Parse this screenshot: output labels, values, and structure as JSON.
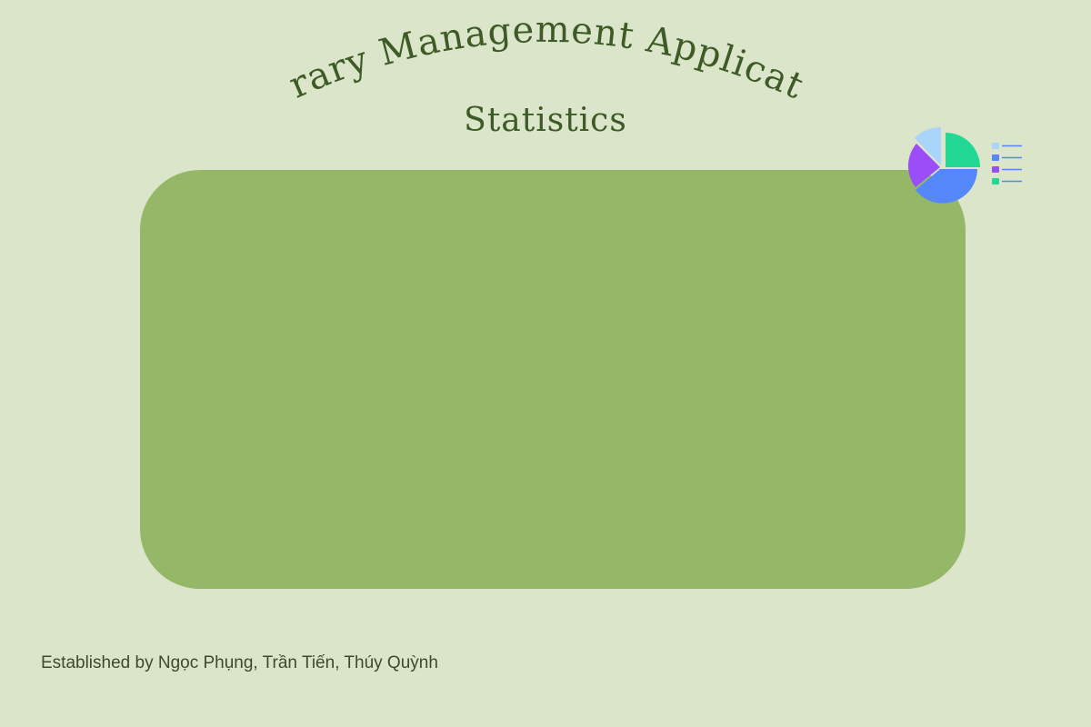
{
  "header": {
    "title": "Library Management Application",
    "subtitle": "Statistics"
  },
  "footer": {
    "credits": "Established by Ngọc Phụng, Trần Tiến, Thúy Quỳnh"
  },
  "decoration": {
    "icon": "pie-chart-legend-icon",
    "slice_colors": [
      "#a9d4fb",
      "#21d994",
      "#5487f9",
      "#9b4ef8"
    ]
  },
  "colors": {
    "background": "#dae5c9",
    "panel": "#95b768",
    "text": "#3e5a26"
  }
}
